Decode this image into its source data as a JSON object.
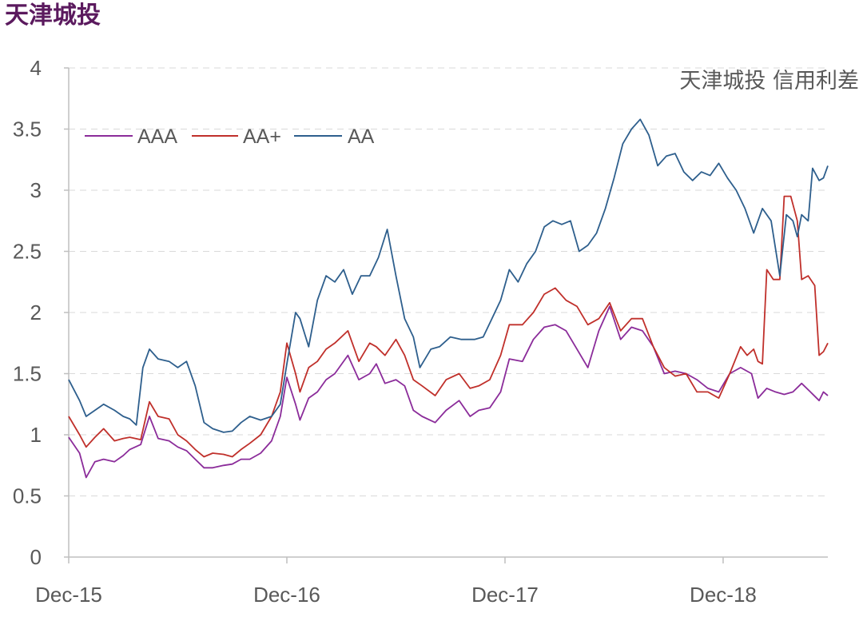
{
  "page_title": "天津城投",
  "colors": {
    "title": "#5b1a5e",
    "axis": "#bfbfbf",
    "grid": "#d9d9d9",
    "text": "#595959"
  },
  "chart_data": {
    "type": "line",
    "title": "天津城投 信用利差",
    "xlabel": "",
    "ylabel": "",
    "x_ticks": [
      "Dec-15",
      "Dec-16",
      "Dec-17",
      "Dec-18"
    ],
    "x_range": [
      2015.92,
      2019.4
    ],
    "ylim": [
      0,
      4
    ],
    "y_ticks": [
      "0",
      "0.5",
      "1",
      "1.5",
      "2",
      "2.5",
      "3",
      "3.5",
      "4"
    ],
    "grid": "horizontal dashed",
    "legend_position": "top-left",
    "series": [
      {
        "name": "AAA",
        "color": "#8b2c9a",
        "points": [
          [
            2015.92,
            0.98
          ],
          [
            2015.97,
            0.85
          ],
          [
            2016.0,
            0.65
          ],
          [
            2016.04,
            0.78
          ],
          [
            2016.08,
            0.8
          ],
          [
            2016.13,
            0.78
          ],
          [
            2016.17,
            0.83
          ],
          [
            2016.2,
            0.88
          ],
          [
            2016.25,
            0.92
          ],
          [
            2016.29,
            1.15
          ],
          [
            2016.33,
            0.97
          ],
          [
            2016.38,
            0.95
          ],
          [
            2016.42,
            0.9
          ],
          [
            2016.46,
            0.87
          ],
          [
            2016.5,
            0.8
          ],
          [
            2016.54,
            0.73
          ],
          [
            2016.58,
            0.73
          ],
          [
            2016.63,
            0.75
          ],
          [
            2016.67,
            0.76
          ],
          [
            2016.71,
            0.8
          ],
          [
            2016.75,
            0.8
          ],
          [
            2016.8,
            0.85
          ],
          [
            2016.85,
            0.95
          ],
          [
            2016.89,
            1.15
          ],
          [
            2016.92,
            1.47
          ],
          [
            2016.96,
            1.25
          ],
          [
            2016.98,
            1.12
          ],
          [
            2017.02,
            1.3
          ],
          [
            2017.06,
            1.35
          ],
          [
            2017.1,
            1.45
          ],
          [
            2017.14,
            1.5
          ],
          [
            2017.2,
            1.65
          ],
          [
            2017.25,
            1.45
          ],
          [
            2017.3,
            1.5
          ],
          [
            2017.33,
            1.58
          ],
          [
            2017.37,
            1.42
          ],
          [
            2017.42,
            1.45
          ],
          [
            2017.46,
            1.4
          ],
          [
            2017.5,
            1.2
          ],
          [
            2017.54,
            1.15
          ],
          [
            2017.6,
            1.1
          ],
          [
            2017.65,
            1.2
          ],
          [
            2017.71,
            1.28
          ],
          [
            2017.76,
            1.15
          ],
          [
            2017.8,
            1.2
          ],
          [
            2017.85,
            1.22
          ],
          [
            2017.9,
            1.35
          ],
          [
            2017.94,
            1.62
          ],
          [
            2018.0,
            1.6
          ],
          [
            2018.05,
            1.78
          ],
          [
            2018.1,
            1.88
          ],
          [
            2018.15,
            1.9
          ],
          [
            2018.2,
            1.85
          ],
          [
            2018.25,
            1.7
          ],
          [
            2018.3,
            1.55
          ],
          [
            2018.35,
            1.85
          ],
          [
            2018.4,
            2.05
          ],
          [
            2018.45,
            1.78
          ],
          [
            2018.5,
            1.88
          ],
          [
            2018.55,
            1.85
          ],
          [
            2018.6,
            1.72
          ],
          [
            2018.65,
            1.5
          ],
          [
            2018.7,
            1.52
          ],
          [
            2018.75,
            1.5
          ],
          [
            2018.8,
            1.45
          ],
          [
            2018.85,
            1.38
          ],
          [
            2018.9,
            1.35
          ],
          [
            2018.95,
            1.5
          ],
          [
            2019.0,
            1.55
          ],
          [
            2019.05,
            1.5
          ],
          [
            2019.08,
            1.3
          ],
          [
            2019.12,
            1.38
          ],
          [
            2019.16,
            1.35
          ],
          [
            2019.2,
            1.33
          ],
          [
            2019.24,
            1.35
          ],
          [
            2019.28,
            1.42
          ],
          [
            2019.32,
            1.35
          ],
          [
            2019.36,
            1.28
          ],
          [
            2019.38,
            1.35
          ],
          [
            2019.4,
            1.32
          ]
        ]
      },
      {
        "name": "AA+",
        "color": "#c0302b",
        "points": [
          [
            2015.92,
            1.15
          ],
          [
            2015.97,
            1.0
          ],
          [
            2016.0,
            0.9
          ],
          [
            2016.04,
            0.98
          ],
          [
            2016.08,
            1.05
          ],
          [
            2016.13,
            0.95
          ],
          [
            2016.17,
            0.97
          ],
          [
            2016.2,
            0.98
          ],
          [
            2016.25,
            0.96
          ],
          [
            2016.29,
            1.27
          ],
          [
            2016.33,
            1.15
          ],
          [
            2016.38,
            1.13
          ],
          [
            2016.42,
            1.0
          ],
          [
            2016.46,
            0.95
          ],
          [
            2016.5,
            0.88
          ],
          [
            2016.54,
            0.82
          ],
          [
            2016.58,
            0.85
          ],
          [
            2016.63,
            0.84
          ],
          [
            2016.67,
            0.82
          ],
          [
            2016.71,
            0.88
          ],
          [
            2016.75,
            0.93
          ],
          [
            2016.8,
            1.0
          ],
          [
            2016.85,
            1.15
          ],
          [
            2016.89,
            1.35
          ],
          [
            2016.92,
            1.75
          ],
          [
            2016.96,
            1.5
          ],
          [
            2016.98,
            1.35
          ],
          [
            2017.02,
            1.55
          ],
          [
            2017.06,
            1.6
          ],
          [
            2017.1,
            1.7
          ],
          [
            2017.14,
            1.75
          ],
          [
            2017.2,
            1.85
          ],
          [
            2017.25,
            1.6
          ],
          [
            2017.3,
            1.75
          ],
          [
            2017.33,
            1.72
          ],
          [
            2017.37,
            1.65
          ],
          [
            2017.42,
            1.78
          ],
          [
            2017.46,
            1.65
          ],
          [
            2017.5,
            1.45
          ],
          [
            2017.54,
            1.4
          ],
          [
            2017.6,
            1.32
          ],
          [
            2017.65,
            1.45
          ],
          [
            2017.71,
            1.5
          ],
          [
            2017.76,
            1.38
          ],
          [
            2017.8,
            1.4
          ],
          [
            2017.85,
            1.45
          ],
          [
            2017.9,
            1.65
          ],
          [
            2017.94,
            1.9
          ],
          [
            2018.0,
            1.9
          ],
          [
            2018.05,
            2.0
          ],
          [
            2018.1,
            2.15
          ],
          [
            2018.15,
            2.2
          ],
          [
            2018.2,
            2.1
          ],
          [
            2018.25,
            2.05
          ],
          [
            2018.3,
            1.9
          ],
          [
            2018.35,
            1.95
          ],
          [
            2018.4,
            2.08
          ],
          [
            2018.45,
            1.85
          ],
          [
            2018.5,
            1.95
          ],
          [
            2018.55,
            1.95
          ],
          [
            2018.6,
            1.72
          ],
          [
            2018.65,
            1.55
          ],
          [
            2018.7,
            1.48
          ],
          [
            2018.75,
            1.5
          ],
          [
            2018.8,
            1.35
          ],
          [
            2018.85,
            1.35
          ],
          [
            2018.9,
            1.3
          ],
          [
            2018.95,
            1.5
          ],
          [
            2019.0,
            1.72
          ],
          [
            2019.03,
            1.65
          ],
          [
            2019.06,
            1.7
          ],
          [
            2019.08,
            1.6
          ],
          [
            2019.1,
            1.58
          ],
          [
            2019.12,
            2.35
          ],
          [
            2019.15,
            2.27
          ],
          [
            2019.18,
            2.27
          ],
          [
            2019.2,
            2.95
          ],
          [
            2019.23,
            2.95
          ],
          [
            2019.26,
            2.75
          ],
          [
            2019.28,
            2.27
          ],
          [
            2019.31,
            2.3
          ],
          [
            2019.34,
            2.22
          ],
          [
            2019.36,
            1.65
          ],
          [
            2019.38,
            1.68
          ],
          [
            2019.4,
            1.75
          ]
        ]
      },
      {
        "name": "AA",
        "color": "#2e5f8d",
        "points": [
          [
            2015.92,
            1.45
          ],
          [
            2015.97,
            1.28
          ],
          [
            2016.0,
            1.15
          ],
          [
            2016.04,
            1.2
          ],
          [
            2016.08,
            1.25
          ],
          [
            2016.13,
            1.2
          ],
          [
            2016.17,
            1.15
          ],
          [
            2016.2,
            1.13
          ],
          [
            2016.23,
            1.08
          ],
          [
            2016.26,
            1.55
          ],
          [
            2016.29,
            1.7
          ],
          [
            2016.33,
            1.62
          ],
          [
            2016.38,
            1.6
          ],
          [
            2016.42,
            1.55
          ],
          [
            2016.46,
            1.6
          ],
          [
            2016.5,
            1.4
          ],
          [
            2016.54,
            1.1
          ],
          [
            2016.58,
            1.05
          ],
          [
            2016.63,
            1.02
          ],
          [
            2016.67,
            1.03
          ],
          [
            2016.71,
            1.1
          ],
          [
            2016.75,
            1.15
          ],
          [
            2016.8,
            1.12
          ],
          [
            2016.85,
            1.15
          ],
          [
            2016.89,
            1.25
          ],
          [
            2016.92,
            1.58
          ],
          [
            2016.96,
            2.0
          ],
          [
            2016.98,
            1.95
          ],
          [
            2017.02,
            1.72
          ],
          [
            2017.06,
            2.1
          ],
          [
            2017.1,
            2.3
          ],
          [
            2017.14,
            2.25
          ],
          [
            2017.18,
            2.35
          ],
          [
            2017.22,
            2.15
          ],
          [
            2017.26,
            2.3
          ],
          [
            2017.3,
            2.3
          ],
          [
            2017.34,
            2.45
          ],
          [
            2017.38,
            2.68
          ],
          [
            2017.42,
            2.3
          ],
          [
            2017.46,
            1.95
          ],
          [
            2017.5,
            1.8
          ],
          [
            2017.53,
            1.55
          ],
          [
            2017.58,
            1.7
          ],
          [
            2017.62,
            1.72
          ],
          [
            2017.67,
            1.8
          ],
          [
            2017.72,
            1.78
          ],
          [
            2017.78,
            1.78
          ],
          [
            2017.82,
            1.8
          ],
          [
            2017.86,
            1.95
          ],
          [
            2017.9,
            2.1
          ],
          [
            2017.94,
            2.35
          ],
          [
            2017.98,
            2.25
          ],
          [
            2018.02,
            2.4
          ],
          [
            2018.06,
            2.5
          ],
          [
            2018.1,
            2.7
          ],
          [
            2018.14,
            2.75
          ],
          [
            2018.18,
            2.72
          ],
          [
            2018.22,
            2.75
          ],
          [
            2018.26,
            2.5
          ],
          [
            2018.3,
            2.55
          ],
          [
            2018.34,
            2.65
          ],
          [
            2018.38,
            2.85
          ],
          [
            2018.42,
            3.1
          ],
          [
            2018.46,
            3.38
          ],
          [
            2018.5,
            3.5
          ],
          [
            2018.54,
            3.58
          ],
          [
            2018.58,
            3.45
          ],
          [
            2018.62,
            3.2
          ],
          [
            2018.66,
            3.28
          ],
          [
            2018.7,
            3.3
          ],
          [
            2018.74,
            3.15
          ],
          [
            2018.78,
            3.08
          ],
          [
            2018.82,
            3.15
          ],
          [
            2018.86,
            3.12
          ],
          [
            2018.9,
            3.22
          ],
          [
            2018.94,
            3.1
          ],
          [
            2018.98,
            3.0
          ],
          [
            2019.02,
            2.85
          ],
          [
            2019.06,
            2.65
          ],
          [
            2019.1,
            2.85
          ],
          [
            2019.14,
            2.75
          ],
          [
            2019.18,
            2.3
          ],
          [
            2019.21,
            2.8
          ],
          [
            2019.24,
            2.75
          ],
          [
            2019.26,
            2.62
          ],
          [
            2019.28,
            2.8
          ],
          [
            2019.31,
            2.75
          ],
          [
            2019.33,
            3.18
          ],
          [
            2019.36,
            3.08
          ],
          [
            2019.38,
            3.1
          ],
          [
            2019.4,
            3.2
          ]
        ]
      }
    ]
  }
}
